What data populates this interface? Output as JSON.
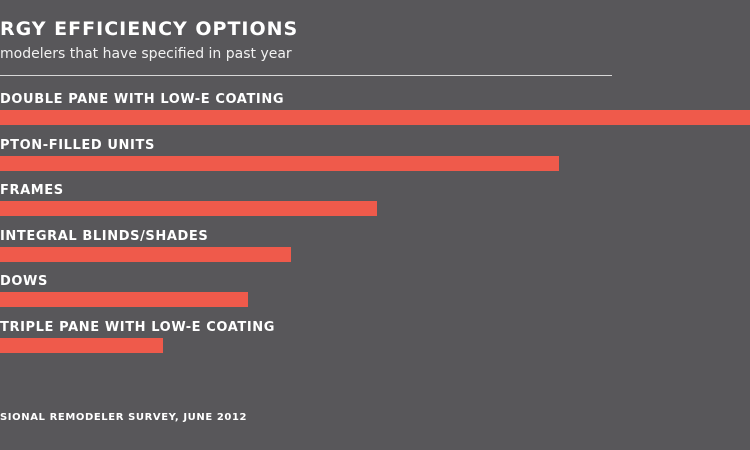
{
  "colors": {
    "background": "#58575a",
    "bar": "#ef5a4b",
    "text": "#ffffff"
  },
  "chart_data": {
    "type": "bar",
    "orientation": "horizontal",
    "title": "RGY EFFICIENCY OPTIONS",
    "subtitle": "modelers that have specified in past year",
    "source": "SIONAL REMODELER SURVEY, JUNE 2012",
    "categories": [
      "DOUBLE PANE WITH LOW-E COATING",
      "PTON-FILLED UNITS",
      "FRAMES",
      "INTEGRAL BLINDS/SHADES",
      "DOWS",
      "TRIPLE PANE WITH LOW-E COATING"
    ],
    "series": [
      {
        "values": [
          100,
          74.5,
          50.2,
          38.8,
          33.1,
          21.7
        ]
      }
    ],
    "xlim": [
      0,
      100
    ],
    "grid": false,
    "legend": "none"
  }
}
